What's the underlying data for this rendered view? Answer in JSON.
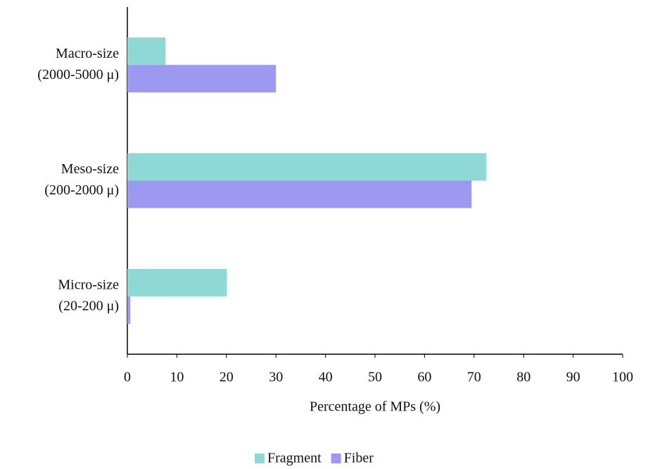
{
  "chart_data": {
    "type": "hbar",
    "categories": [
      [
        "Macro-size",
        "(2000-5000 μ)"
      ],
      [
        "Meso-size",
        "(200-2000 μ)"
      ],
      [
        "Micro-size",
        "(20-200 μ)"
      ]
    ],
    "series": [
      {
        "name": "Fragment",
        "color": "#8ed9d6",
        "values": [
          7.7,
          72.5,
          20.1
        ]
      },
      {
        "name": "Fiber",
        "color": "#9d98f2",
        "values": [
          30,
          69.5,
          0.6
        ]
      }
    ],
    "xlabel": "Percentage of MPs (%)",
    "xlim": [
      0,
      100
    ],
    "xticks": [
      0,
      10,
      20,
      30,
      40,
      50,
      60,
      70,
      80,
      90,
      100
    ],
    "grid": false,
    "legend": "bottom"
  }
}
